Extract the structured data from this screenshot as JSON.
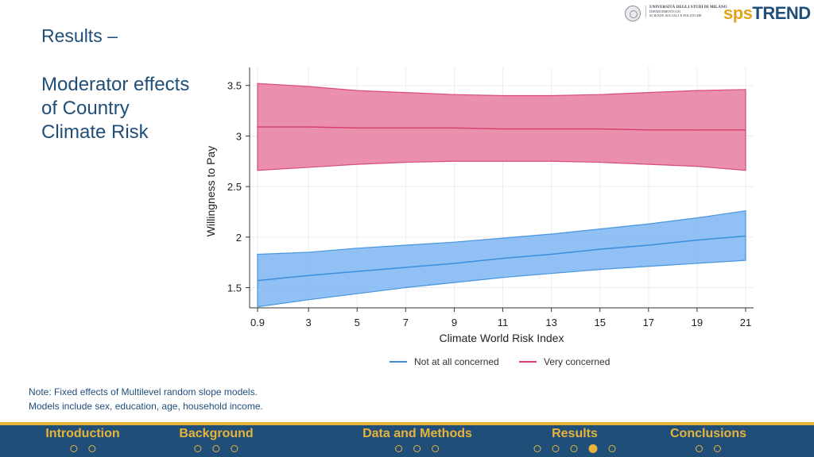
{
  "slide": {
    "title": "Results –",
    "subtitle": "Moderator effects of Country Climate Risk",
    "note_lines": [
      "Note: Fixed effects of Multilevel random slope models.",
      "Models include sex, education, age, household income."
    ]
  },
  "logos": {
    "university_line1": "UNIVERSITÀ DEGLI STUDI DI MILANO",
    "university_line2": "DIPARTIMENTO DI",
    "university_line3": "SCIENZE SOCIALI E POLITICHE",
    "brand_part1": "sps",
    "brand_part2": "TREND"
  },
  "nav": {
    "sections": [
      {
        "label": "Introduction",
        "dots": 2,
        "active_dot": -1
      },
      {
        "label": "Background",
        "dots": 3,
        "active_dot": -1
      },
      {
        "label": "Data and Methods",
        "dots": 3,
        "active_dot": -1
      },
      {
        "label": "Results",
        "dots": 5,
        "active_dot": 3
      },
      {
        "label": "Conclusions",
        "dots": 2,
        "active_dot": -1
      }
    ]
  },
  "colors": {
    "title": "#1F4E79",
    "footer_bg": "#1F4E79",
    "footer_accent": "#E8B33A",
    "series_blue_line": "#3B8EDB",
    "series_blue_fill": "#7DB5F2",
    "series_pink_line": "#D6406E",
    "series_pink_fill": "#E67C9E"
  },
  "chart_data": {
    "type": "line",
    "title": "",
    "xlabel": "Climate World Risk Index",
    "ylabel": "Willingness to Pay",
    "xlim": [
      0.9,
      21
    ],
    "ylim": [
      1.3,
      3.6
    ],
    "x_ticks": [
      0.9,
      3,
      5,
      7,
      9,
      11,
      13,
      15,
      17,
      19,
      21
    ],
    "x_tick_labels": [
      "0.9",
      "3",
      "5",
      "7",
      "9",
      "11",
      "13",
      "15",
      "17",
      "19",
      "21"
    ],
    "y_ticks": [
      1.5,
      2,
      2.5,
      3,
      3.5
    ],
    "y_tick_labels": [
      "1.5",
      "2",
      "2.5",
      "3",
      "3.5"
    ],
    "grid": true,
    "legend_position": "bottom",
    "series": [
      {
        "name": "Not at all concerned",
        "color_key": "blue",
        "x": [
          0.9,
          3,
          5,
          7,
          9,
          11,
          13,
          15,
          17,
          19,
          21
        ],
        "y": [
          1.57,
          1.62,
          1.66,
          1.7,
          1.74,
          1.79,
          1.83,
          1.88,
          1.92,
          1.97,
          2.01
        ],
        "lower": [
          1.31,
          1.38,
          1.44,
          1.5,
          1.55,
          1.6,
          1.64,
          1.68,
          1.71,
          1.74,
          1.77
        ],
        "upper": [
          1.83,
          1.85,
          1.89,
          1.92,
          1.95,
          1.99,
          2.03,
          2.08,
          2.13,
          2.19,
          2.26
        ]
      },
      {
        "name": "Very concerned",
        "color_key": "pink",
        "x": [
          0.9,
          3,
          5,
          7,
          9,
          11,
          13,
          15,
          17,
          19,
          21
        ],
        "y": [
          3.09,
          3.09,
          3.08,
          3.08,
          3.08,
          3.07,
          3.07,
          3.07,
          3.06,
          3.06,
          3.06
        ],
        "lower": [
          2.66,
          2.69,
          2.72,
          2.74,
          2.75,
          2.75,
          2.75,
          2.74,
          2.72,
          2.7,
          2.66
        ],
        "upper": [
          3.52,
          3.49,
          3.45,
          3.43,
          3.41,
          3.4,
          3.4,
          3.41,
          3.43,
          3.45,
          3.46
        ]
      }
    ]
  }
}
